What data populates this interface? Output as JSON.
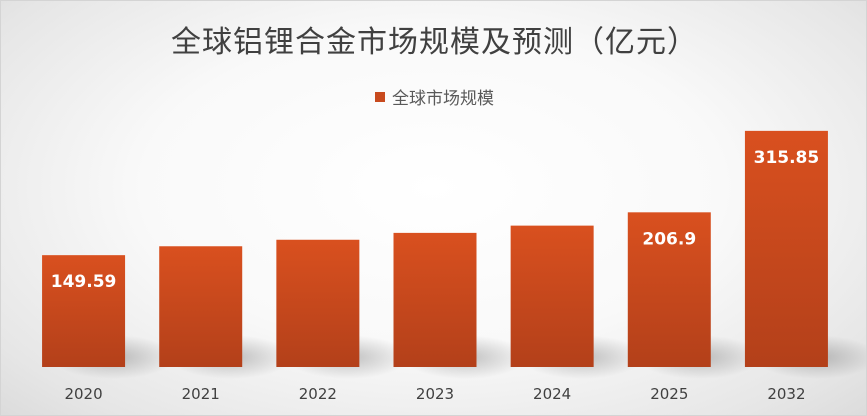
{
  "chart_data": {
    "type": "bar",
    "title": "全球铝锂合金市场规模及预测（亿元）",
    "xlabel": "",
    "ylabel": "",
    "categories": [
      "2020",
      "2021",
      "2022",
      "2023",
      "2024",
      "2025",
      "2032"
    ],
    "series": [
      {
        "name": "全球市场规模",
        "values": [
          149.59,
          161.5,
          170.2,
          179.4,
          189.1,
          206.9,
          315.85
        ],
        "data_labels": [
          "149.59",
          "",
          "",
          "",
          "",
          "206.9",
          "315.85"
        ]
      }
    ],
    "ylim": [
      0,
      420
    ],
    "grid": false,
    "legend_position": "top",
    "colors": {
      "bar_top": "#d9501f",
      "bar_bottom": "#b3401a",
      "data_label": "#ffffff",
      "tick_label": "#404040",
      "legend_swatch": "#c84a1e"
    }
  }
}
